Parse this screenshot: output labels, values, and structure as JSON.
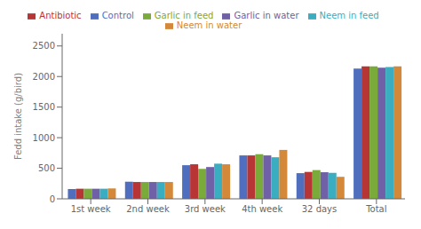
{
  "chart_data": {
    "type": "bar",
    "ylabel": "Fedd intake (g/bird)",
    "categories": [
      "1st week",
      "2nd week",
      "3rd week",
      "4th week",
      "32 days",
      "Total"
    ],
    "series": [
      {
        "name": "Control",
        "color": "#4f6fbe",
        "values": [
          160,
          280,
          550,
          710,
          420,
          2130
        ]
      },
      {
        "name": "Antibiotic",
        "color": "#b83535",
        "values": [
          165,
          275,
          565,
          710,
          440,
          2165
        ]
      },
      {
        "name": "Garlic in feed",
        "color": "#7aaa3a",
        "values": [
          165,
          275,
          490,
          730,
          470,
          2165
        ]
      },
      {
        "name": "Garlic in water",
        "color": "#7060a8",
        "values": [
          165,
          275,
          520,
          710,
          435,
          2145
        ]
      },
      {
        "name": "Neem in feed",
        "color": "#3aaec0",
        "values": [
          165,
          275,
          575,
          680,
          425,
          2155
        ]
      },
      {
        "name": "Neem in water",
        "color": "#d4883a",
        "values": [
          170,
          275,
          565,
          800,
          360,
          2165
        ]
      }
    ],
    "ylim": [
      0,
      2700
    ],
    "yticks": [
      0,
      500,
      1000,
      1500,
      2000,
      2500
    ],
    "grid": false,
    "legend": "top"
  }
}
